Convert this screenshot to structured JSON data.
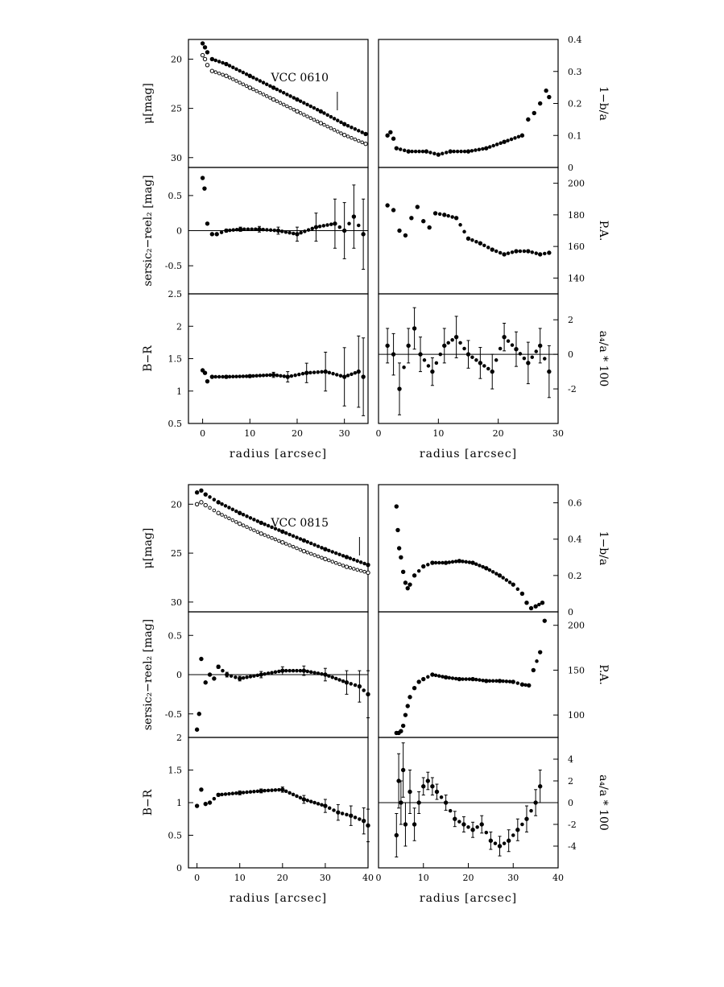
{
  "figure": {
    "caption_free": true,
    "colors": {
      "ink": "#000000",
      "background": "#ffffff"
    }
  },
  "chart_data": [
    {
      "type": "scatter",
      "galaxy": "VCC 0610",
      "panel": "surface-brightness",
      "label": "VCC 0610",
      "ylabel": "μ[mag]",
      "xlim": [
        -3,
        35
      ],
      "ylim": [
        31,
        18
      ],
      "yticks": [
        20,
        25,
        30
      ],
      "series": [
        {
          "name": "B",
          "x": [
            0,
            0.5,
            1,
            2,
            5,
            10,
            15,
            20,
            25,
            30,
            34.5
          ],
          "y": [
            19.6,
            20.0,
            20.6,
            21.2,
            21.7,
            22.9,
            24.1,
            25.3,
            26.5,
            27.7,
            28.6
          ]
        },
        {
          "name": "R",
          "x": [
            0,
            0.5,
            1,
            2,
            5,
            10,
            15,
            20,
            25,
            30,
            34.5
          ],
          "y": [
            18.4,
            18.8,
            19.3,
            20.0,
            20.5,
            21.7,
            22.9,
            24.1,
            25.3,
            26.6,
            27.6
          ]
        }
      ],
      "marker_x": 28.5
    },
    {
      "type": "scatter",
      "galaxy": "VCC 0610",
      "panel": "sersic-residual",
      "ylabel": "sersic₂−reel₂ [mag]",
      "xlim": [
        -3,
        35
      ],
      "ylim": [
        -0.9,
        0.9
      ],
      "yticks": [
        -0.5,
        0,
        0.5
      ],
      "ytick_labels": [
        "-0.5",
        "0",
        "0.5"
      ],
      "zero_line": true,
      "series": [
        {
          "name": "residual",
          "x": [
            0,
            0.4,
            1,
            2,
            3,
            5,
            8,
            12,
            16,
            20,
            24,
            28,
            30,
            32,
            34
          ],
          "y": [
            0.75,
            0.6,
            0.1,
            -0.05,
            -0.05,
            0.0,
            0.02,
            0.02,
            0.0,
            -0.05,
            0.05,
            0.1,
            0.0,
            0.2,
            -0.05
          ],
          "err": [
            0,
            0,
            0,
            0,
            0,
            0.02,
            0.03,
            0.04,
            0.05,
            0.1,
            0.2,
            0.35,
            0.4,
            0.45,
            0.5
          ]
        }
      ]
    },
    {
      "type": "scatter",
      "galaxy": "VCC 0610",
      "panel": "color",
      "ylabel": "B−R",
      "xlabel": "radius [arcsec]",
      "xlim": [
        -3,
        35
      ],
      "ylim": [
        0.5,
        2.5
      ],
      "yticks": [
        0.5,
        1,
        1.5,
        2,
        2.5
      ],
      "ytick_labels": [
        "0.5",
        "1",
        "1.5",
        "2",
        "2.5"
      ],
      "xticks": [
        0,
        10,
        20,
        30
      ],
      "series": [
        {
          "name": "B-R",
          "x": [
            0,
            0.5,
            1,
            2,
            5,
            10,
            15,
            18,
            22,
            26,
            30,
            33,
            34
          ],
          "y": [
            1.32,
            1.28,
            1.15,
            1.22,
            1.22,
            1.23,
            1.25,
            1.22,
            1.28,
            1.3,
            1.22,
            1.3,
            1.22
          ],
          "err": [
            0,
            0,
            0,
            0,
            0.02,
            0.02,
            0.04,
            0.08,
            0.15,
            0.3,
            0.45,
            0.55,
            0.6
          ]
        }
      ]
    },
    {
      "type": "scatter",
      "galaxy": "VCC 0610",
      "panel": "ellipticity",
      "ylabel": "1−b/a",
      "xlim": [
        0,
        30
      ],
      "ylim": [
        0,
        0.4
      ],
      "yticks": [
        0,
        0.1,
        0.2,
        0.3,
        0.4
      ],
      "ytick_labels": [
        "0",
        "0.1",
        "0.2",
        "0.3",
        "0.4"
      ],
      "series": [
        {
          "name": "ellipticity",
          "x": [
            1.5,
            2,
            2.5,
            3,
            5,
            8,
            10,
            12,
            15,
            18,
            21,
            24,
            25,
            26,
            27,
            28,
            28.5
          ],
          "y": [
            0.1,
            0.11,
            0.09,
            0.06,
            0.05,
            0.05,
            0.04,
            0.05,
            0.05,
            0.06,
            0.08,
            0.1,
            0.15,
            0.17,
            0.2,
            0.24,
            0.22
          ]
        }
      ]
    },
    {
      "type": "scatter",
      "galaxy": "VCC 0610",
      "panel": "position-angle",
      "ylabel": "P.A.",
      "xlim": [
        0,
        30
      ],
      "ylim": [
        130,
        210
      ],
      "yticks": [
        140,
        160,
        180,
        200
      ],
      "ytick_labels": [
        "140",
        "160",
        "180",
        "200"
      ],
      "series": [
        {
          "name": "PA",
          "x": [
            1.5,
            2.5,
            3.5,
            4.5,
            5.5,
            6.5,
            7.5,
            8.5,
            9.5,
            11,
            13,
            15,
            17,
            19,
            21,
            23,
            25,
            27,
            28.5
          ],
          "y": [
            186,
            183,
            170,
            167,
            178,
            185,
            176,
            172,
            181,
            180,
            178,
            165,
            162,
            158,
            155,
            157,
            157,
            155,
            156
          ]
        }
      ]
    },
    {
      "type": "scatter",
      "galaxy": "VCC 0610",
      "panel": "a4",
      "ylabel": "a₄/a * 100",
      "xlabel": "radius [arcsec]",
      "xlim": [
        0,
        30
      ],
      "ylim": [
        -4,
        3.5
      ],
      "yticks": [
        -2,
        0,
        2
      ],
      "ytick_labels": [
        "-2",
        "0",
        "2"
      ],
      "xticks": [
        0,
        10,
        20,
        30
      ],
      "zero_line": true,
      "series": [
        {
          "name": "a4",
          "x": [
            1.5,
            2.5,
            3.5,
            5,
            6,
            7,
            9,
            11,
            13,
            15,
            17,
            19,
            21,
            23,
            25,
            27,
            28.5
          ],
          "y": [
            0.5,
            0,
            -2,
            0.5,
            1.5,
            0,
            -1,
            0.5,
            1,
            0,
            -0.5,
            -1,
            1,
            0.3,
            -0.5,
            0.5,
            -1
          ],
          "err": [
            1,
            1.2,
            1.5,
            1,
            1.2,
            1,
            0.8,
            1,
            1.2,
            0.8,
            0.9,
            1,
            0.8,
            1,
            1.2,
            1,
            1.5
          ]
        }
      ]
    },
    {
      "type": "scatter",
      "galaxy": "VCC 0815",
      "panel": "surface-brightness",
      "label": "VCC 0815",
      "ylabel": "μ[mag]",
      "xlim": [
        -2,
        40
      ],
      "ylim": [
        31,
        18
      ],
      "yticks": [
        20,
        25,
        30
      ],
      "series": [
        {
          "name": "B",
          "x": [
            0,
            1,
            2,
            5,
            10,
            15,
            20,
            25,
            30,
            35,
            40
          ],
          "y": [
            20.0,
            19.8,
            20.1,
            20.9,
            22.0,
            23.0,
            23.9,
            24.8,
            25.6,
            26.4,
            27.0
          ]
        },
        {
          "name": "R",
          "x": [
            0,
            1,
            2,
            5,
            10,
            15,
            20,
            25,
            30,
            35,
            40
          ],
          "y": [
            18.8,
            18.6,
            19.0,
            19.8,
            20.9,
            21.9,
            22.8,
            23.7,
            24.6,
            25.4,
            26.2
          ]
        }
      ],
      "marker_x": 38
    },
    {
      "type": "scatter",
      "galaxy": "VCC 0815",
      "panel": "sersic-residual",
      "ylabel": "sersic₂−reel₂ [mag]",
      "xlim": [
        -2,
        40
      ],
      "ylim": [
        -0.8,
        0.8
      ],
      "yticks": [
        -0.5,
        0,
        0.5
      ],
      "ytick_labels": [
        "-0.5",
        "0",
        "0.5"
      ],
      "zero_line": true,
      "series": [
        {
          "name": "residual",
          "x": [
            0,
            0.5,
            1,
            2,
            3,
            4,
            5,
            7,
            10,
            15,
            20,
            25,
            30,
            35,
            38,
            40
          ],
          "y": [
            -0.7,
            -0.5,
            0.2,
            -0.1,
            0.0,
            -0.05,
            0.1,
            0.0,
            -0.05,
            0.0,
            0.05,
            0.05,
            0.0,
            -0.1,
            -0.15,
            -0.25
          ],
          "err": [
            0,
            0,
            0,
            0,
            0,
            0,
            0.02,
            0.03,
            0.03,
            0.04,
            0.05,
            0.06,
            0.08,
            0.15,
            0.2,
            0.3
          ]
        }
      ]
    },
    {
      "type": "scatter",
      "galaxy": "VCC 0815",
      "panel": "color",
      "ylabel": "B−R",
      "xlabel": "radius [arcsec]",
      "xlim": [
        -2,
        40
      ],
      "ylim": [
        0,
        2
      ],
      "yticks": [
        0,
        0.5,
        1,
        1.5,
        2
      ],
      "ytick_labels": [
        "0",
        "0.5",
        "1",
        "1.5",
        "2"
      ],
      "xticks": [
        0,
        10,
        20,
        30,
        40
      ],
      "series": [
        {
          "name": "B-R",
          "x": [
            0,
            1,
            2,
            3,
            5,
            10,
            15,
            20,
            25,
            30,
            33,
            36,
            39,
            40
          ],
          "y": [
            0.95,
            1.2,
            0.98,
            1.0,
            1.12,
            1.15,
            1.18,
            1.2,
            1.05,
            0.95,
            0.85,
            0.8,
            0.72,
            0.65
          ],
          "err": [
            0,
            0,
            0,
            0,
            0.02,
            0.03,
            0.03,
            0.04,
            0.06,
            0.1,
            0.12,
            0.15,
            0.2,
            0.25
          ]
        }
      ]
    },
    {
      "type": "scatter",
      "galaxy": "VCC 0815",
      "panel": "ellipticity",
      "ylabel": "1−b/a",
      "xlim": [
        0,
        40
      ],
      "ylim": [
        0,
        0.7
      ],
      "yticks": [
        0,
        0.2,
        0.4,
        0.6
      ],
      "ytick_labels": [
        "0",
        "0.2",
        "0.4",
        "0.6"
      ],
      "series": [
        {
          "name": "ellipticity",
          "x": [
            4,
            4.3,
            4.6,
            5,
            5.5,
            6,
            6.5,
            7,
            8,
            10,
            12,
            15,
            18,
            21,
            24,
            27,
            30,
            32,
            33,
            34,
            35,
            36.5
          ],
          "y": [
            0.58,
            0.45,
            0.35,
            0.3,
            0.22,
            0.16,
            0.13,
            0.15,
            0.2,
            0.25,
            0.27,
            0.27,
            0.28,
            0.27,
            0.24,
            0.2,
            0.15,
            0.1,
            0.05,
            0.02,
            0.03,
            0.05
          ]
        }
      ]
    },
    {
      "type": "scatter",
      "galaxy": "VCC 0815",
      "panel": "position-angle",
      "ylabel": "P.A.",
      "xlim": [
        0,
        40
      ],
      "ylim": [
        75,
        215
      ],
      "yticks": [
        100,
        150,
        200
      ],
      "ytick_labels": [
        "100",
        "150",
        "200"
      ],
      "series": [
        {
          "name": "PA",
          "x": [
            4,
            4.5,
            5,
            5.5,
            6,
            6.5,
            7,
            8,
            9,
            10,
            12,
            15,
            18,
            21,
            24,
            27,
            30,
            32,
            33.5,
            34.5,
            36,
            37
          ],
          "y": [
            80,
            80,
            82,
            88,
            100,
            110,
            120,
            130,
            137,
            140,
            145,
            142,
            140,
            140,
            138,
            138,
            137,
            134,
            133,
            150,
            170,
            205
          ]
        }
      ]
    },
    {
      "type": "scatter",
      "galaxy": "VCC 0815",
      "panel": "a4",
      "ylabel": "a₄/a * 100",
      "xlabel": "radius [arcsec]",
      "xlim": [
        0,
        40
      ],
      "ylim": [
        -6,
        6
      ],
      "yticks": [
        -4,
        -2,
        0,
        2,
        4
      ],
      "ytick_labels": [
        "-4",
        "-2",
        "0",
        "2",
        "4"
      ],
      "xticks": [
        0,
        10,
        20,
        30,
        40
      ],
      "zero_line": true,
      "series": [
        {
          "name": "a4",
          "x": [
            4,
            4.5,
            5,
            5.5,
            6,
            7,
            8,
            9,
            10,
            11,
            12,
            13,
            15,
            17,
            19,
            21,
            23,
            25,
            27,
            29,
            31,
            33,
            35,
            36
          ],
          "y": [
            -3,
            2,
            0,
            3,
            -2,
            1,
            -2,
            0,
            1.5,
            2,
            1.5,
            1,
            0,
            -1.5,
            -2,
            -2.5,
            -2,
            -3.5,
            -4,
            -3.5,
            -2.5,
            -1.5,
            0,
            1.5
          ],
          "err": [
            2,
            2.5,
            2,
            2.5,
            2,
            2,
            1.5,
            1,
            0.8,
            0.8,
            0.8,
            0.7,
            0.7,
            0.7,
            0.7,
            0.7,
            0.8,
            0.8,
            0.9,
            1,
            1,
            1.2,
            1.2,
            1.5
          ]
        }
      ]
    }
  ]
}
